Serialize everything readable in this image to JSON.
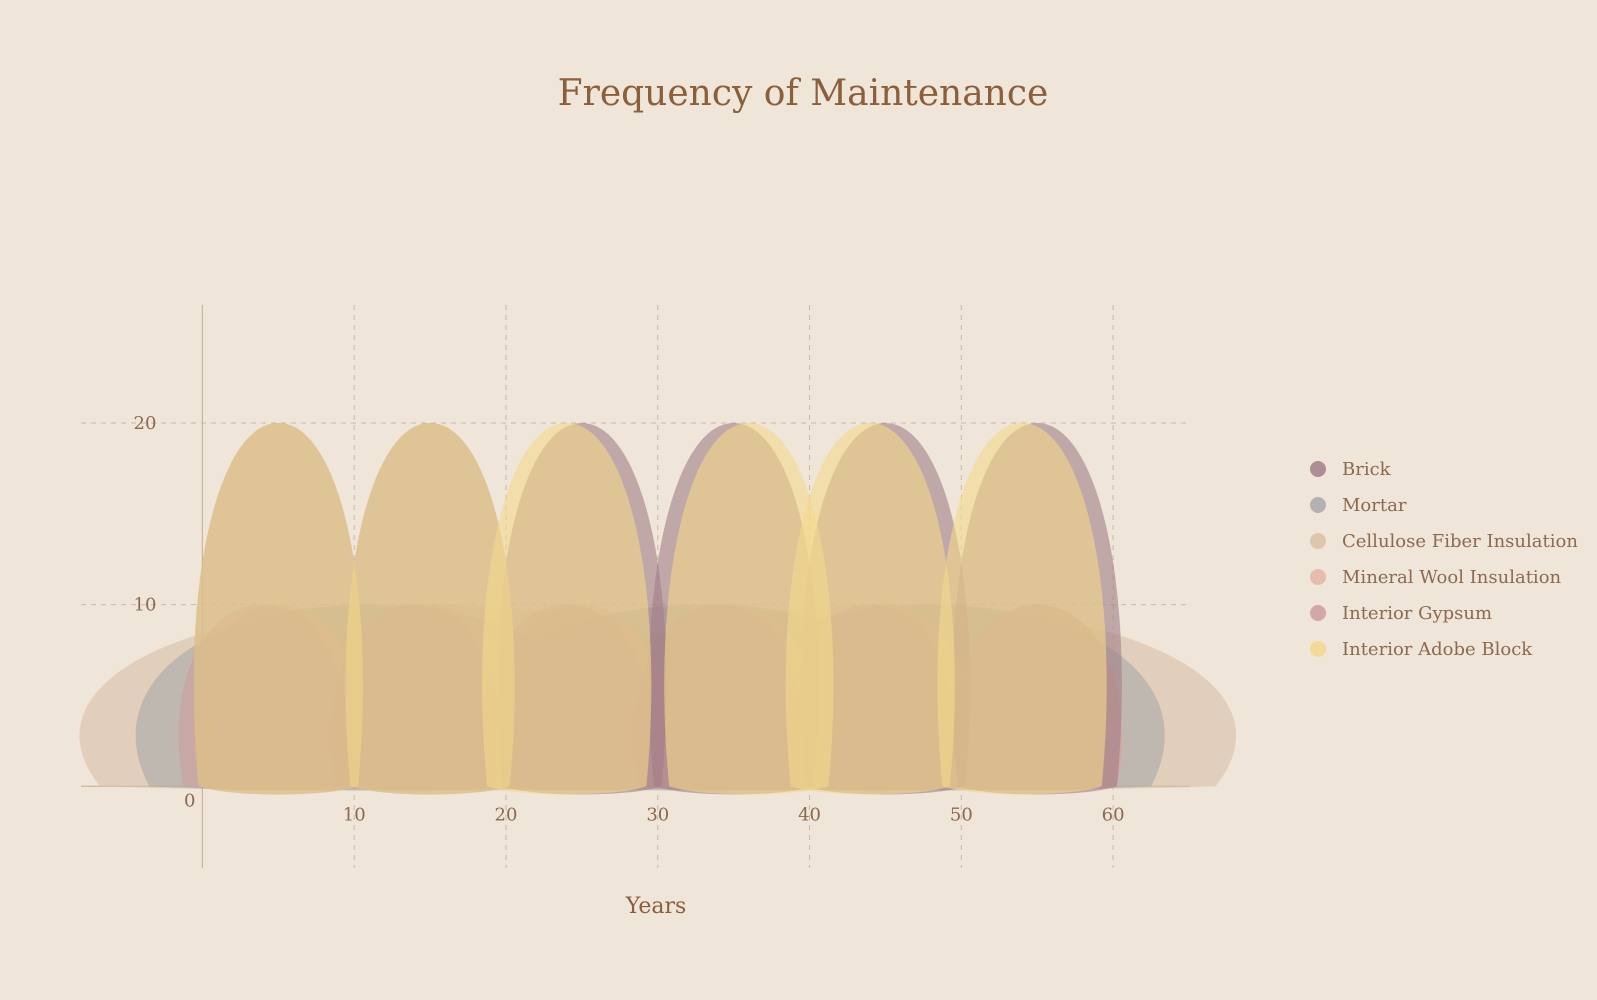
{
  "chart_data": {
    "type": "area",
    "title": "Frequency of Maintenance",
    "xlabel": "Years",
    "ylabel": "",
    "xlim": [
      -8,
      65
    ],
    "ylim": [
      -4.5,
      26.5
    ],
    "x_ticks": [
      10,
      20,
      30,
      40,
      50,
      60
    ],
    "y_ticks": [
      0,
      10,
      20
    ],
    "grid": true,
    "legend_position": "right",
    "series": [
      {
        "name": "Brick",
        "color": "#a27f87",
        "peak": 20,
        "interval": 10,
        "peaks_x": [
          5,
          15,
          25,
          35,
          45,
          55
        ]
      },
      {
        "name": "Mortar",
        "color": "#a9a9a9",
        "peak": 10,
        "interval": 20,
        "peaks_x": [
          11,
          33,
          48
        ]
      },
      {
        "name": "Cellulose Fiber Insulation",
        "color": "#d9c0a6",
        "peak": 10,
        "interval": 30,
        "peaks_x": [
          15,
          45
        ]
      },
      {
        "name": "Mineral Wool Insulation",
        "color": "#e5b5a3",
        "peak": 10,
        "interval": 10,
        "peaks_x": [
          5,
          15,
          25,
          35,
          45,
          55
        ]
      },
      {
        "name": "Interior Gypsum",
        "color": "#cc9e9e",
        "peak": 10,
        "interval": 10,
        "peaks_x": [
          4,
          14,
          24,
          34,
          44,
          55
        ]
      },
      {
        "name": "Interior Adobe Block",
        "color": "#f3d98b",
        "peak": 20,
        "interval": 10,
        "peaks_x": [
          5,
          15,
          24,
          36,
          44,
          54
        ]
      }
    ]
  }
}
